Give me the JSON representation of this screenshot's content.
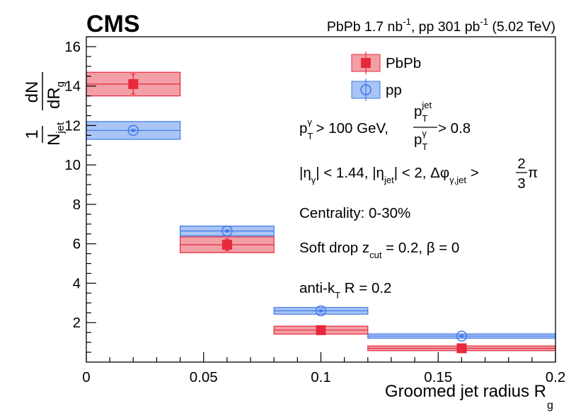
{
  "chart_data": {
    "type": "bar",
    "experiment": "CMS",
    "luminosity": {
      "pbpb_prefix": "PbPb 1.7 nb",
      "pbpb_exp": "-1",
      "pp_prefix": ", pp 301 pb",
      "pp_exp": "-1",
      "energy": " (5.02 TeV)"
    },
    "xlabel": "Groomed jet radius R",
    "xlabel_sub": "g",
    "ylabel": {
      "one": "1",
      "n": "N",
      "n_sub": "jet",
      "dn": "dN",
      "dr": "dR",
      "dr_sub": "g"
    },
    "xlim": [
      0,
      0.2
    ],
    "ylim": [
      0,
      16.5
    ],
    "x_ticks": [
      0,
      0.05,
      0.1,
      0.15,
      0.2
    ],
    "x_tick_labels": [
      "0",
      "0.05",
      "0.1",
      "0.15",
      "0.2"
    ],
    "y_ticks": [
      2,
      4,
      6,
      8,
      10,
      12,
      14,
      16
    ],
    "y_tick_labels": [
      "2",
      "4",
      "6",
      "8",
      "10",
      "12",
      "14",
      "16"
    ],
    "bins": [
      {
        "lo": 0.0,
        "hi": 0.04
      },
      {
        "lo": 0.04,
        "hi": 0.08
      },
      {
        "lo": 0.08,
        "hi": 0.12
      },
      {
        "lo": 0.12,
        "hi": 0.2
      }
    ],
    "series": [
      {
        "name": "PbPb",
        "marker": "filled-square",
        "color": "#e8283c",
        "fill": "#f2a0a6",
        "x": [
          0.02,
          0.06,
          0.1,
          0.16
        ],
        "values": [
          14.1,
          5.95,
          1.62,
          0.7
        ],
        "stat_err": [
          0.5,
          0.3,
          0.15,
          0.1
        ],
        "syst_err": [
          0.6,
          0.4,
          0.2,
          0.12
        ]
      },
      {
        "name": "pp",
        "marker": "open-circle",
        "color": "#3f78e8",
        "fill": "#a9c4f5",
        "x": [
          0.02,
          0.06,
          0.1,
          0.16
        ],
        "values": [
          11.75,
          6.65,
          2.6,
          1.32
        ],
        "stat_err": [
          0.05,
          0.05,
          0.05,
          0.04
        ],
        "syst_err": [
          0.45,
          0.25,
          0.17,
          0.11
        ]
      }
    ],
    "annotations": {
      "cut1_pt": "p",
      "cut1_T": "T",
      "cut1_gamma": "γ",
      "cut1_text": " > 100 GeV,",
      "cut1_jet": "jet",
      "cut1_ratio_tail": " > 0.8",
      "cut2_eta": "|η",
      "cut2_gamma": "γ",
      "cut2_mid": "| < 1.44, |η",
      "cut2_jet": "jet",
      "cut2_tail": "| < 2, Δφ",
      "cut2_gjet": "γ,jet",
      "cut2_gt": " >",
      "cut2_two": "2",
      "cut2_three": "3",
      "cut2_pi": "π",
      "centrality": "Centrality: 0-30%",
      "softdrop_pre": "Soft drop z",
      "softdrop_sub": "cut",
      "softdrop_post": " = 0.2, β = 0",
      "antikt_pre": "anti-k",
      "antikt_sub": "T",
      "antikt_post": " R = 0.2"
    }
  }
}
